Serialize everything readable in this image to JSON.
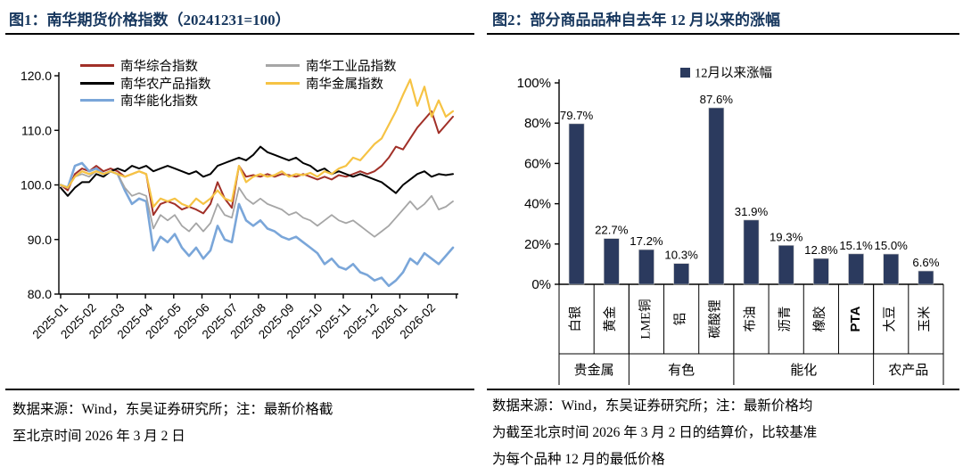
{
  "colors": {
    "title_navy": "#17375E",
    "rule_black": "#000000",
    "bar_navy": "#2B3A5E",
    "axis_black": "#000000"
  },
  "figure1": {
    "title": "图1：南华期货价格指数（20241231=100）",
    "note_lines": [
      "数据来源：Wind，东吴证券研究所；注：最新价格截",
      "至北京时间 2026 年 3 月 2 日"
    ]
  },
  "figure2": {
    "title": "图2：部分商品品种自去年 12 月以来的涨幅",
    "note_lines": [
      "数据来源：Wind，东吴证券研究所；注：最新价格均",
      "为截至北京时间 2026 年 3 月 2 日的结算价，比较基准",
      "为每个品种 12 月的最低价格"
    ]
  },
  "chart_data": [
    {
      "type": "line",
      "title": "南华期货价格指数（20241231=100）",
      "ylim": [
        80,
        120
      ],
      "ytick_labels": [
        "80.0",
        "90.0",
        "100.0",
        "110.0",
        "120.0"
      ],
      "x_months": [
        "2025-01",
        "2025-02",
        "2025-03",
        "2025-04",
        "2025-05",
        "2025-06",
        "2025-07",
        "2025-08",
        "2025-09",
        "2025-10",
        "2025-11",
        "2025-12",
        "2026-01",
        "2026-02"
      ],
      "grid": false,
      "legend_position": "top-left-two-columns",
      "series": [
        {
          "name": "南华综合指数",
          "color": "#A13028",
          "width": 2,
          "values": [
            100,
            99,
            102,
            103,
            102.5,
            103.5,
            102.5,
            103,
            102.5,
            101.5,
            102,
            102.5,
            102,
            94.5,
            96.5,
            97,
            96.5,
            95.5,
            96,
            95.5,
            94.8,
            96.5,
            100.5,
            97.5,
            95.8,
            103.5,
            101.5,
            101.8,
            101.5,
            102,
            101.5,
            102,
            101.8,
            101.5,
            102,
            101.5,
            101,
            101.5,
            101,
            101.8,
            101.5,
            102,
            102.5,
            102,
            102.5,
            103.5,
            105,
            107,
            106.5,
            108.5,
            110.5,
            112,
            113.5,
            109.5,
            111,
            112.5
          ]
        },
        {
          "name": "南华农产品指数",
          "color": "#000000",
          "width": 2,
          "values": [
            99.5,
            98,
            99.5,
            100.5,
            100.5,
            102,
            101.5,
            102.5,
            103,
            102.5,
            103.5,
            103,
            103.5,
            102.5,
            103,
            103.5,
            103,
            102.5,
            102,
            102.5,
            101.5,
            102,
            103.5,
            104,
            104.5,
            105,
            104.5,
            105.5,
            107,
            106,
            105.5,
            105,
            104.5,
            105,
            104,
            103.5,
            102.5,
            103,
            102,
            102.5,
            102,
            101.5,
            102,
            101.5,
            101,
            100.5,
            99.5,
            98.5,
            100,
            101,
            102,
            102.5,
            101.5,
            102,
            101.8,
            102
          ]
        },
        {
          "name": "南华能化指数",
          "color": "#7AA6D9",
          "width": 2.6,
          "values": [
            100,
            99.5,
            103.5,
            104,
            102.5,
            103,
            102,
            102.5,
            102,
            99,
            96.5,
            97.5,
            97,
            88,
            90.5,
            89.5,
            91,
            88.5,
            87,
            88.5,
            86.5,
            88,
            92.5,
            90,
            89.5,
            96.5,
            93.5,
            92.5,
            93.5,
            92,
            91.5,
            90.5,
            90,
            90.5,
            89.5,
            88.5,
            87.5,
            85.5,
            86.5,
            85,
            84.5,
            85.5,
            84,
            83.5,
            82.5,
            83,
            81.5,
            82.5,
            84,
            86.5,
            85.5,
            87.5,
            86.5,
            85.5,
            87,
            88.5
          ]
        },
        {
          "name": "南华工业品指数",
          "color": "#A6A6A6",
          "width": 1.8,
          "values": [
            100,
            99.5,
            101.5,
            102,
            101.5,
            102.5,
            102,
            102.5,
            102,
            99.5,
            98,
            98.5,
            98,
            92,
            94.5,
            93.5,
            94.5,
            92.5,
            91.5,
            93,
            91.5,
            93,
            96.5,
            94.5,
            94,
            99.5,
            97.5,
            96.5,
            97.5,
            96.5,
            96,
            95.5,
            94.5,
            95,
            94,
            93.5,
            92.5,
            93.5,
            94.5,
            93.5,
            93,
            93.5,
            92.5,
            91.5,
            90.5,
            91.5,
            92.5,
            94,
            95.5,
            97,
            95.5,
            96.5,
            98,
            95.5,
            96,
            97
          ]
        },
        {
          "name": "南华金属指数",
          "color": "#F6C344",
          "width": 2.2,
          "values": [
            100,
            99.5,
            101.5,
            102.5,
            102,
            102.5,
            102,
            102.5,
            102,
            101.5,
            102,
            102.5,
            102,
            96,
            97.5,
            97,
            97.5,
            96.5,
            96,
            97.5,
            96.5,
            97.5,
            99,
            97.5,
            97,
            103.5,
            100.5,
            101.5,
            102,
            101.5,
            101.8,
            102.5,
            101.5,
            102,
            101.8,
            102.2,
            101.5,
            102.5,
            102,
            103,
            103.5,
            105,
            104.5,
            106,
            107.5,
            108.5,
            111,
            113.5,
            116.5,
            119.3,
            114.5,
            118,
            112.5,
            115.5,
            112.5,
            113.5
          ]
        }
      ]
    },
    {
      "type": "bar",
      "title": "部分商品品种自去年 12 月以来的涨幅",
      "legend": "12月以来涨幅",
      "bar_color": "#2B3A5E",
      "ylim": [
        0,
        100
      ],
      "ytick_labels": [
        "0%",
        "20%",
        "40%",
        "60%",
        "80%",
        "100%"
      ],
      "categories": [
        "白银",
        "黄金",
        "LME铜",
        "铝",
        "碳酸锂",
        "布油",
        "沥青",
        "橡胶",
        "PTA",
        "大豆",
        "玉米"
      ],
      "values": [
        79.7,
        22.7,
        17.2,
        10.3,
        87.6,
        31.9,
        19.3,
        12.8,
        15.1,
        15.0,
        6.6
      ],
      "value_labels": [
        "79.7%",
        "22.7%",
        "17.2%",
        "10.3%",
        "87.6%",
        "31.9%",
        "19.3%",
        "12.8%",
        "15.1%",
        "15.0%",
        "6.6%"
      ],
      "groups": [
        {
          "label": "贵金属",
          "start": 0,
          "end": 2
        },
        {
          "label": "有色",
          "start": 2,
          "end": 5
        },
        {
          "label": "能化",
          "start": 5,
          "end": 9
        },
        {
          "label": "农产品",
          "start": 9,
          "end": 11
        }
      ]
    }
  ]
}
